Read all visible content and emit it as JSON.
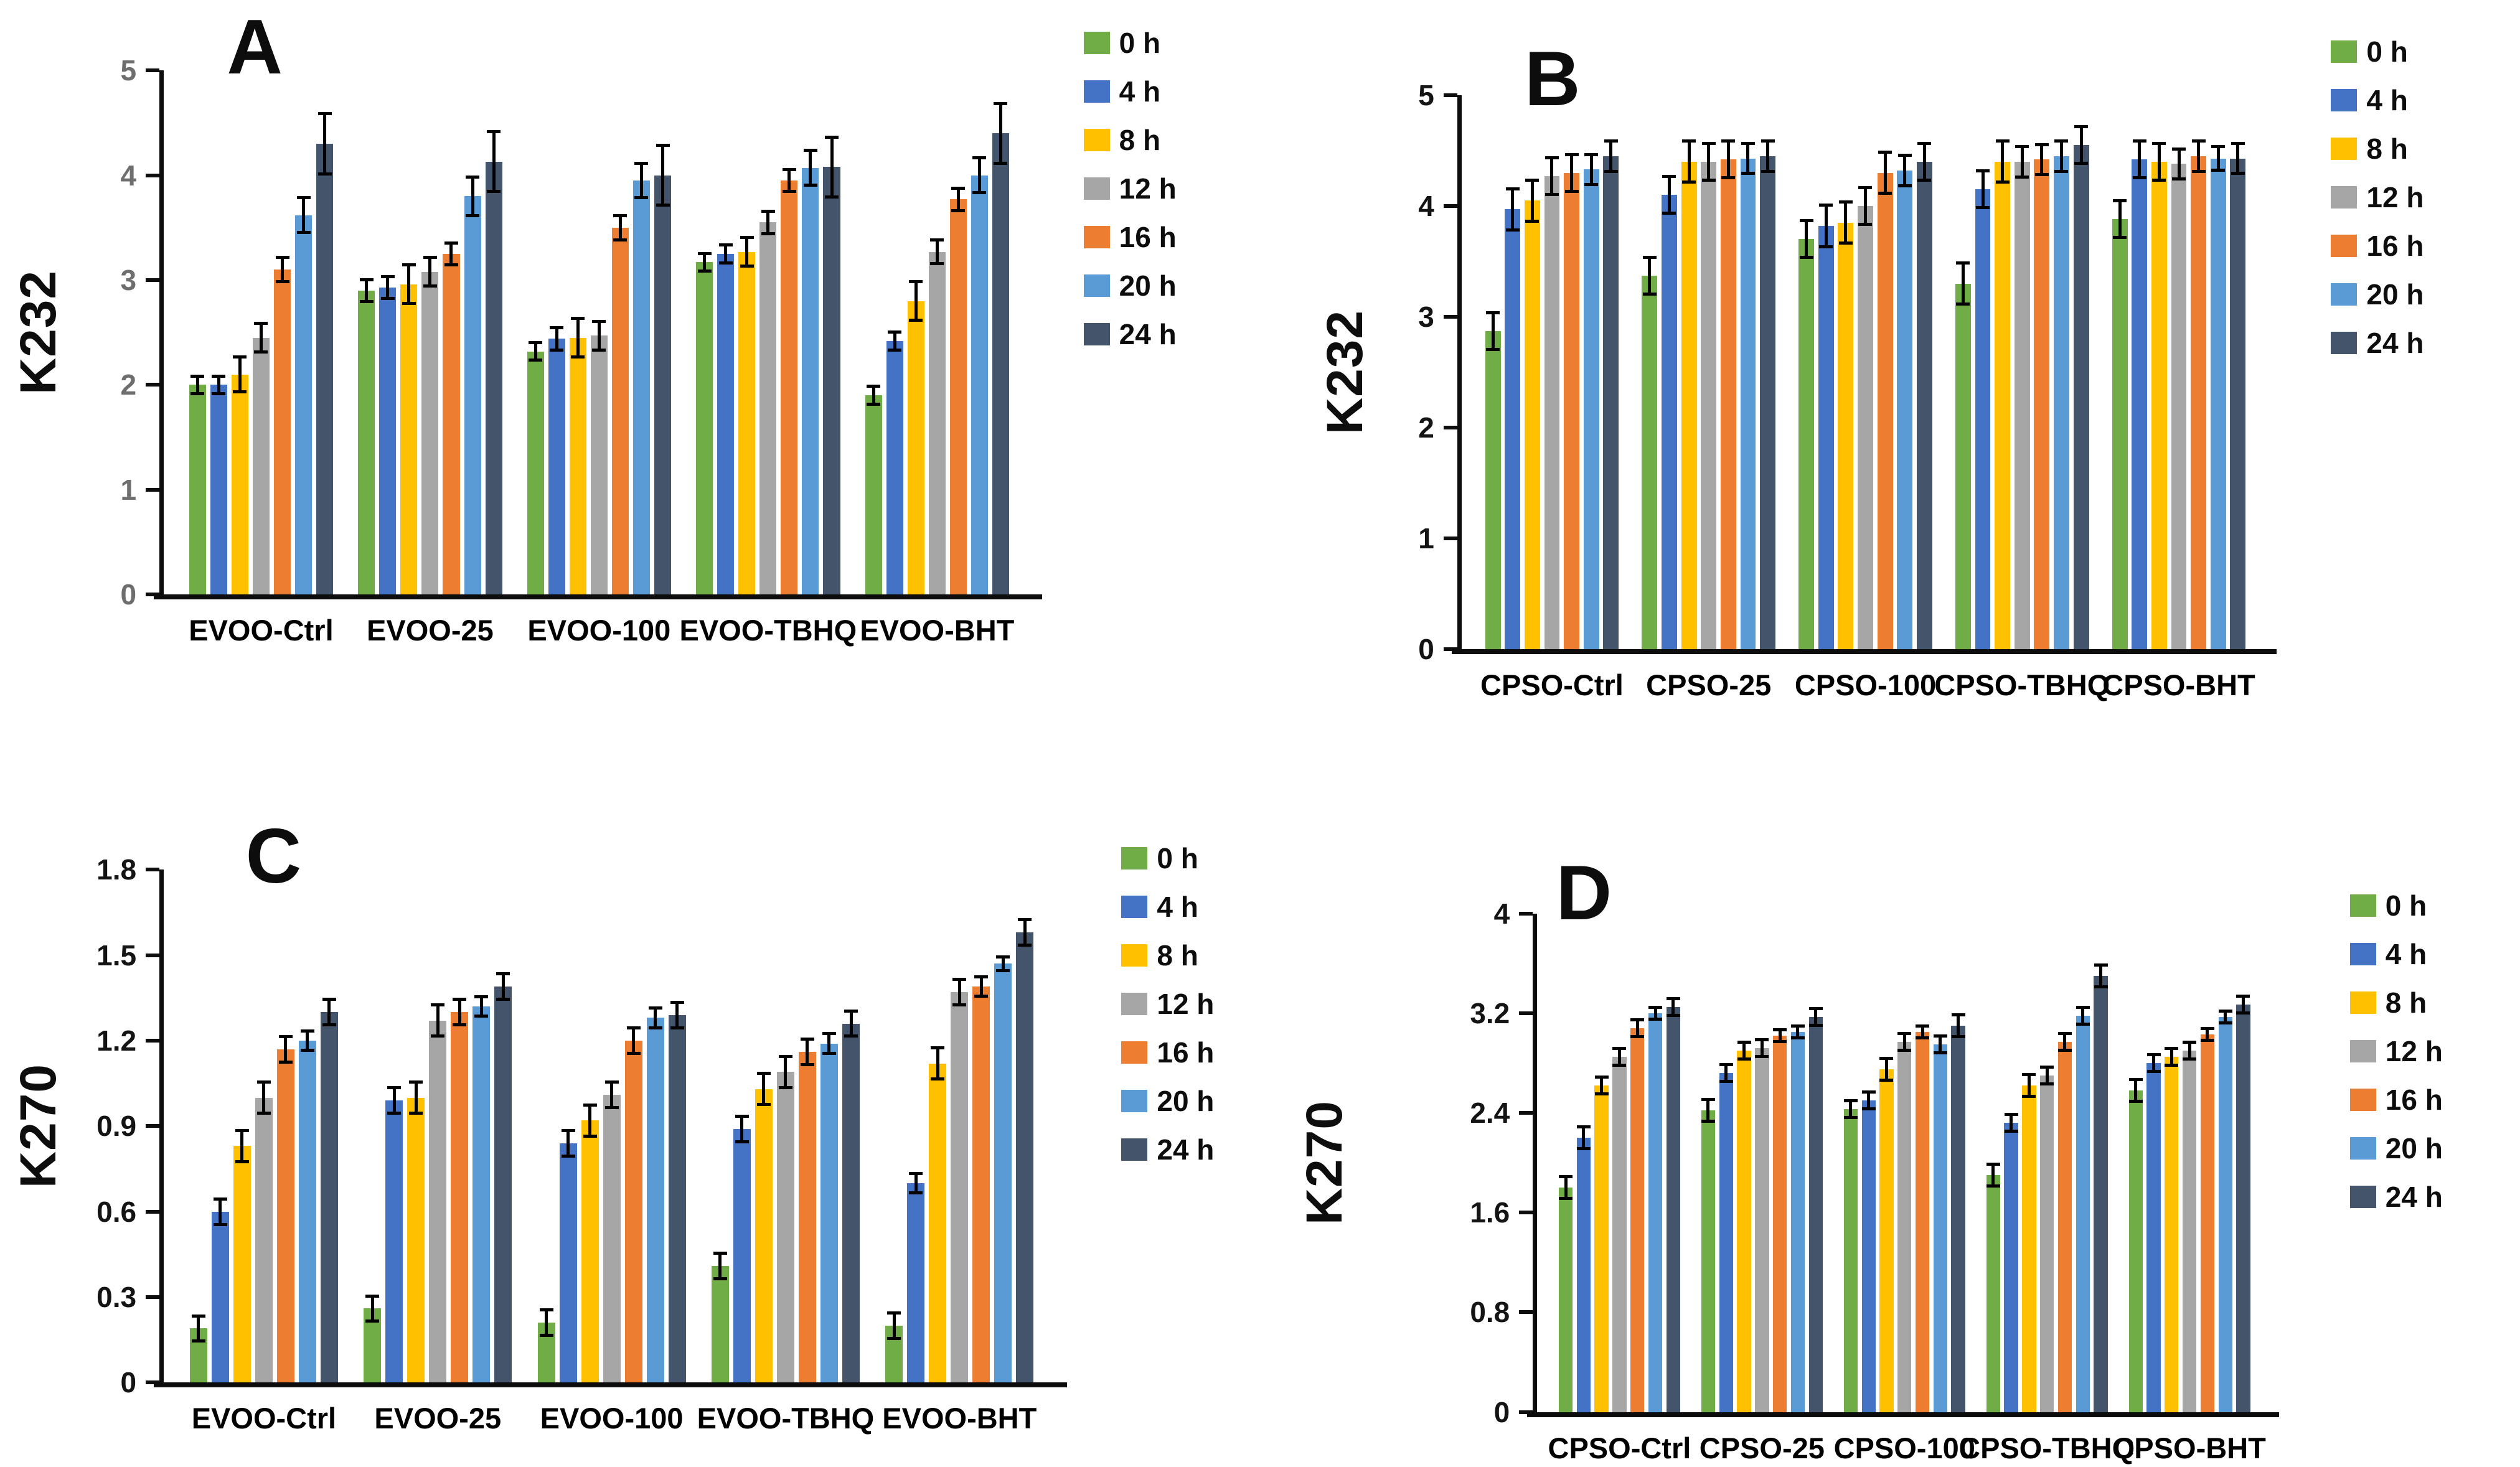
{
  "legend": [
    {
      "label": "0 h",
      "color": "#70AD47"
    },
    {
      "label": "4 h",
      "color": "#4472C4"
    },
    {
      "label": "8 h",
      "color": "#FFC000"
    },
    {
      "label": "12 h",
      "color": "#A6A6A6"
    },
    {
      "label": "16 h",
      "color": "#ED7D31"
    },
    {
      "label": "20 h",
      "color": "#5B9BD5"
    },
    {
      "label": "24 h",
      "color": "#44546A"
    }
  ],
  "chart_data": [
    {
      "letter": "A",
      "type": "bar",
      "ylabel": "K232",
      "ylim": [
        0,
        5
      ],
      "yticks": [
        0,
        1,
        2,
        3,
        4,
        5
      ],
      "ytick_labels": [
        "0",
        "1",
        "2",
        "3",
        "4",
        "5"
      ],
      "grid": false,
      "legend_position": "right",
      "categories": [
        "EVOO-Ctrl",
        "EVOO-25",
        "EVOO-100",
        "EVOO-TBHQ",
        "EVOO-BHT"
      ],
      "series": [
        {
          "name": "0 h",
          "color": "#70AD47",
          "values": [
            2.0,
            2.9,
            2.32,
            3.17,
            1.9
          ],
          "errors": [
            0.1,
            0.12,
            0.1,
            0.1,
            0.1
          ]
        },
        {
          "name": "4 h",
          "color": "#4472C4",
          "values": [
            2.0,
            2.93,
            2.44,
            3.25,
            2.42
          ],
          "errors": [
            0.1,
            0.12,
            0.12,
            0.1,
            0.1
          ]
        },
        {
          "name": "8 h",
          "color": "#FFC000",
          "values": [
            2.1,
            2.96,
            2.45,
            3.27,
            2.8
          ],
          "errors": [
            0.18,
            0.2,
            0.2,
            0.15,
            0.2
          ]
        },
        {
          "name": "12 h",
          "color": "#A6A6A6",
          "values": [
            2.45,
            3.08,
            2.47,
            3.55,
            3.27
          ],
          "errors": [
            0.15,
            0.15,
            0.15,
            0.12,
            0.13
          ]
        },
        {
          "name": "16 h",
          "color": "#ED7D31",
          "values": [
            3.1,
            3.25,
            3.5,
            3.95,
            3.77
          ],
          "errors": [
            0.13,
            0.12,
            0.13,
            0.12,
            0.12
          ]
        },
        {
          "name": "20 h",
          "color": "#5B9BD5",
          "values": [
            3.62,
            3.8,
            3.95,
            4.07,
            4.0
          ],
          "errors": [
            0.18,
            0.2,
            0.18,
            0.18,
            0.18
          ]
        },
        {
          "name": "24 h",
          "color": "#44546A",
          "values": [
            4.3,
            4.13,
            4.0,
            4.08,
            4.4
          ],
          "errors": [
            0.3,
            0.3,
            0.3,
            0.3,
            0.3
          ]
        }
      ]
    },
    {
      "letter": "B",
      "type": "bar",
      "ylabel": "K232",
      "ylim": [
        0,
        5
      ],
      "yticks": [
        0,
        1,
        2,
        3,
        4,
        5
      ],
      "ytick_labels": [
        "0",
        "1",
        "2",
        "3",
        "4",
        "5"
      ],
      "grid": false,
      "legend_position": "right",
      "categories": [
        "CPSO-Ctrl",
        "CPSO-25",
        "CPSO-100",
        "CPSO-TBHQ",
        "CPSO-BHT"
      ],
      "series": [
        {
          "name": "0 h",
          "color": "#70AD47",
          "values": [
            2.87,
            3.37,
            3.7,
            3.3,
            3.88
          ],
          "errors": [
            0.18,
            0.18,
            0.18,
            0.2,
            0.18
          ]
        },
        {
          "name": "4 h",
          "color": "#4472C4",
          "values": [
            3.97,
            4.1,
            3.82,
            4.15,
            4.42
          ],
          "errors": [
            0.2,
            0.18,
            0.2,
            0.18,
            0.18
          ]
        },
        {
          "name": "8 h",
          "color": "#FFC000",
          "values": [
            4.05,
            4.4,
            3.85,
            4.4,
            4.4
          ],
          "errors": [
            0.2,
            0.2,
            0.2,
            0.2,
            0.18
          ]
        },
        {
          "name": "12 h",
          "color": "#A6A6A6",
          "values": [
            4.27,
            4.4,
            4.0,
            4.4,
            4.38
          ],
          "errors": [
            0.18,
            0.18,
            0.18,
            0.15,
            0.15
          ]
        },
        {
          "name": "16 h",
          "color": "#ED7D31",
          "values": [
            4.3,
            4.42,
            4.3,
            4.42,
            4.45
          ],
          "errors": [
            0.18,
            0.18,
            0.2,
            0.15,
            0.15
          ]
        },
        {
          "name": "20 h",
          "color": "#5B9BD5",
          "values": [
            4.33,
            4.43,
            4.32,
            4.45,
            4.43
          ],
          "errors": [
            0.15,
            0.15,
            0.15,
            0.15,
            0.12
          ]
        },
        {
          "name": "24 h",
          "color": "#44546A",
          "values": [
            4.45,
            4.45,
            4.4,
            4.55,
            4.43
          ],
          "errors": [
            0.15,
            0.15,
            0.18,
            0.18,
            0.15
          ]
        }
      ]
    },
    {
      "letter": "C",
      "type": "bar",
      "ylabel": "K270",
      "ylim": [
        0,
        1.8
      ],
      "yticks": [
        0,
        0.3,
        0.6,
        0.9,
        1.2,
        1.5,
        1.8
      ],
      "ytick_labels": [
        "0",
        "0.3",
        "0.6",
        "0.9",
        "1.2",
        "1.5",
        "1.8"
      ],
      "grid": false,
      "legend_position": "right",
      "categories": [
        "EVOO-Ctrl",
        "EVOO-25",
        "EVOO-100",
        "EVOO-TBHQ",
        "EVOO-BHT"
      ],
      "series": [
        {
          "name": "0 h",
          "color": "#70AD47",
          "values": [
            0.19,
            0.26,
            0.21,
            0.41,
            0.2
          ],
          "errors": [
            0.05,
            0.05,
            0.05,
            0.05,
            0.05
          ]
        },
        {
          "name": "4 h",
          "color": "#4472C4",
          "values": [
            0.6,
            0.99,
            0.84,
            0.89,
            0.7
          ],
          "errors": [
            0.05,
            0.05,
            0.05,
            0.05,
            0.04
          ]
        },
        {
          "name": "8 h",
          "color": "#FFC000",
          "values": [
            0.83,
            1.0,
            0.92,
            1.03,
            1.12
          ],
          "errors": [
            0.06,
            0.06,
            0.06,
            0.06,
            0.06
          ]
        },
        {
          "name": "12 h",
          "color": "#A6A6A6",
          "values": [
            1.0,
            1.27,
            1.01,
            1.09,
            1.37
          ],
          "errors": [
            0.06,
            0.06,
            0.05,
            0.06,
            0.05
          ]
        },
        {
          "name": "16 h",
          "color": "#ED7D31",
          "values": [
            1.17,
            1.3,
            1.2,
            1.16,
            1.39
          ],
          "errors": [
            0.05,
            0.05,
            0.05,
            0.05,
            0.04
          ]
        },
        {
          "name": "20 h",
          "color": "#5B9BD5",
          "values": [
            1.2,
            1.32,
            1.28,
            1.19,
            1.47
          ],
          "errors": [
            0.04,
            0.04,
            0.04,
            0.04,
            0.03
          ]
        },
        {
          "name": "24 h",
          "color": "#44546A",
          "values": [
            1.3,
            1.39,
            1.29,
            1.26,
            1.58
          ],
          "errors": [
            0.05,
            0.05,
            0.05,
            0.05,
            0.05
          ]
        }
      ]
    },
    {
      "letter": "D",
      "type": "bar",
      "ylabel": "K270",
      "ylim": [
        0,
        4
      ],
      "yticks": [
        0,
        0.8,
        1.6,
        2.4,
        3.2,
        4
      ],
      "ytick_labels": [
        "0",
        "0.8",
        "1.6",
        "2.4",
        "3.2",
        "4"
      ],
      "grid": false,
      "legend_position": "right",
      "categories": [
        "CPSO-Ctrl",
        "CPSO-25",
        "CPSO-100",
        "CPSO-TBHQ",
        "CPSO-BHT"
      ],
      "series": [
        {
          "name": "0 h",
          "color": "#70AD47",
          "values": [
            1.8,
            2.42,
            2.43,
            1.9,
            2.58
          ],
          "errors": [
            0.1,
            0.1,
            0.08,
            0.1,
            0.1
          ]
        },
        {
          "name": "4 h",
          "color": "#4472C4",
          "values": [
            2.2,
            2.72,
            2.5,
            2.32,
            2.8
          ],
          "errors": [
            0.1,
            0.08,
            0.08,
            0.08,
            0.08
          ]
        },
        {
          "name": "8 h",
          "color": "#FFC000",
          "values": [
            2.62,
            2.9,
            2.75,
            2.62,
            2.85
          ],
          "errors": [
            0.08,
            0.08,
            0.1,
            0.1,
            0.08
          ]
        },
        {
          "name": "12 h",
          "color": "#A6A6A6",
          "values": [
            2.85,
            2.92,
            2.97,
            2.7,
            2.9
          ],
          "errors": [
            0.08,
            0.08,
            0.08,
            0.08,
            0.08
          ]
        },
        {
          "name": "16 h",
          "color": "#ED7D31",
          "values": [
            3.08,
            3.02,
            3.05,
            2.97,
            3.03
          ],
          "errors": [
            0.08,
            0.06,
            0.06,
            0.08,
            0.06
          ]
        },
        {
          "name": "20 h",
          "color": "#5B9BD5",
          "values": [
            3.2,
            3.05,
            2.95,
            3.18,
            3.17
          ],
          "errors": [
            0.06,
            0.06,
            0.08,
            0.08,
            0.06
          ]
        },
        {
          "name": "24 h",
          "color": "#44546A",
          "values": [
            3.25,
            3.17,
            3.1,
            3.5,
            3.27
          ],
          "errors": [
            0.08,
            0.08,
            0.1,
            0.1,
            0.08
          ]
        }
      ]
    }
  ]
}
